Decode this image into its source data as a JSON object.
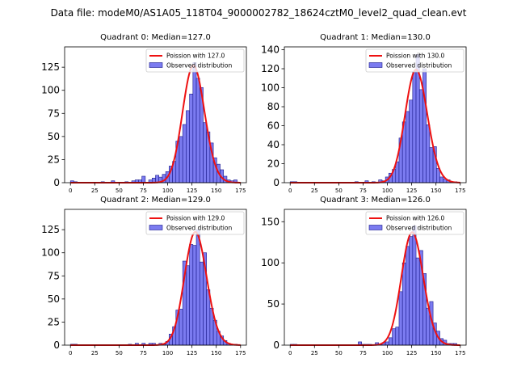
{
  "suptitle": "Data file: modeM0/AS1A05_118T04_9000002782_18624cztM0_level2_quad_clean.evt",
  "colors": {
    "bar_fill": "#7b7bf0",
    "bar_edge": "#1a1a8c",
    "poisson_line": "#ee1111",
    "axes": "#000000"
  },
  "chart_data": [
    {
      "type": "bar",
      "title": "Quadrant 0: Median=127.0",
      "xlim": [
        -6,
        181
      ],
      "ylim": [
        0,
        147
      ],
      "xticks": [
        0,
        25,
        50,
        75,
        100,
        125,
        150,
        175
      ],
      "yticks": [
        0,
        25,
        50,
        75,
        100,
        125
      ],
      "bin_width": 3.5,
      "bin_starts": [
        0,
        3.5,
        31.5,
        42,
        56,
        63,
        66.5,
        70,
        73.5,
        80.5,
        84,
        87.5,
        91,
        94.5,
        98,
        101.5,
        105,
        108.5,
        112,
        115.5,
        119,
        122.5,
        126,
        129.5,
        133,
        136.5,
        140,
        143.5,
        147,
        150.5,
        154,
        157.5,
        161,
        164.5,
        168
      ],
      "values": [
        2,
        1,
        1,
        2,
        1,
        2,
        3,
        3,
        7,
        3,
        5,
        8,
        6,
        9,
        12,
        18,
        23,
        45,
        50,
        63,
        78,
        96,
        130,
        113,
        103,
        65,
        55,
        43,
        27,
        20,
        14,
        7,
        3,
        2,
        3
      ],
      "poisson_label": "Poission with 127.0",
      "poisson_mean": 127.0,
      "hist_label": "Observed distribution"
    },
    {
      "type": "bar",
      "title": "Quadrant 1: Median=130.0",
      "xlim": [
        -6,
        181
      ],
      "ylim": [
        0,
        143
      ],
      "xticks": [
        0,
        25,
        50,
        75,
        100,
        125,
        150,
        175
      ],
      "yticks": [
        0,
        20,
        40,
        60,
        80,
        100,
        120,
        140
      ],
      "bin_width": 3.5,
      "bin_starts": [
        0,
        3.5,
        66.5,
        77,
        84,
        91,
        94.5,
        98,
        101.5,
        105,
        108.5,
        112,
        115.5,
        119,
        122.5,
        126,
        129.5,
        133,
        136.5,
        140,
        143.5,
        147,
        150.5,
        154,
        157.5,
        161,
        164.5,
        168
      ],
      "values": [
        1,
        1,
        1,
        2,
        1,
        3,
        2,
        6,
        10,
        14,
        22,
        47,
        64,
        75,
        87,
        117,
        135,
        98,
        120,
        61,
        37,
        38,
        15,
        6,
        4,
        3,
        1,
        1
      ],
      "poisson_label": "Poission with 130.0",
      "poisson_mean": 130.0,
      "hist_label": "Observed distribution"
    },
    {
      "type": "bar",
      "title": "Quadrant 2: Median=129.0",
      "xlim": [
        -6,
        181
      ],
      "ylim": [
        0,
        147
      ],
      "xticks": [
        0,
        25,
        50,
        75,
        100,
        125,
        150,
        175
      ],
      "yticks": [
        0,
        25,
        50,
        75,
        100,
        125
      ],
      "bin_width": 3.5,
      "bin_starts": [
        0,
        3.5,
        59.5,
        66.5,
        73.5,
        80.5,
        84,
        91,
        94.5,
        98,
        101.5,
        105,
        108.5,
        112,
        115.5,
        119,
        122.5,
        126,
        129.5,
        133,
        136.5,
        140,
        143.5,
        147,
        150.5,
        154,
        157.5,
        161,
        164.5,
        168
      ],
      "values": [
        1,
        1,
        1,
        2,
        2,
        2,
        2,
        2,
        1,
        4,
        12,
        20,
        38,
        39,
        91,
        86,
        109,
        108,
        125,
        90,
        100,
        60,
        40,
        27,
        15,
        10,
        5,
        2,
        1,
        1
      ],
      "poisson_label": "Poission with 129.0",
      "poisson_mean": 129.0,
      "hist_label": "Observed distribution"
    },
    {
      "type": "bar",
      "title": "Quadrant 3: Median=126.0",
      "xlim": [
        -6,
        181
      ],
      "ylim": [
        0,
        165
      ],
      "xticks": [
        0,
        25,
        50,
        75,
        100,
        125,
        150,
        175
      ],
      "yticks": [
        0,
        50,
        100,
        150
      ],
      "bin_width": 3.5,
      "bin_starts": [
        0,
        3.5,
        70,
        73.5,
        77,
        80.5,
        87.5,
        91,
        94.5,
        98,
        101.5,
        105,
        108.5,
        112,
        115.5,
        119,
        122.5,
        126,
        129.5,
        133,
        136.5,
        140,
        143.5,
        147,
        150.5,
        154,
        157.5,
        161,
        164.5,
        168
      ],
      "values": [
        1,
        1,
        4,
        1,
        1,
        1,
        3,
        1,
        3,
        4,
        9,
        20,
        22,
        65,
        100,
        120,
        132,
        145,
        106,
        115,
        87,
        45,
        53,
        27,
        17,
        8,
        6,
        2,
        2,
        2
      ],
      "poisson_label": "Poission with 126.0",
      "poisson_mean": 126.0,
      "hist_label": "Observed distribution"
    }
  ]
}
